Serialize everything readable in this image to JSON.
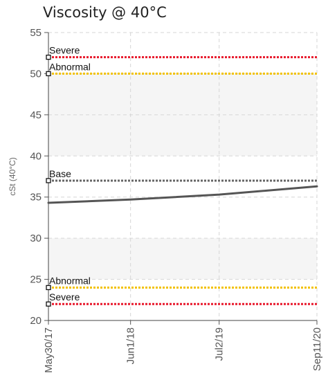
{
  "chart_data": {
    "type": "line",
    "title": "Viscosity @ 40°C",
    "ylabel": "cSt (40°C)",
    "ylim": [
      20,
      55
    ],
    "yticks": [
      20,
      25,
      30,
      35,
      40,
      45,
      50,
      55
    ],
    "xlim": [
      "2017-05-30",
      "2020-09-11"
    ],
    "xticks": [
      {
        "label": "May30/17",
        "date": "2017-05-30"
      },
      {
        "label": "Jun1/18",
        "date": "2018-06-01"
      },
      {
        "label": "Jul2/19",
        "date": "2019-07-02"
      },
      {
        "label": "Sep11/20",
        "date": "2020-09-11"
      }
    ],
    "grid": true,
    "bands": [
      {
        "from": 40,
        "to": 50,
        "color": "#f5f5f5"
      },
      {
        "from": 25,
        "to": 30,
        "color": "#f5f5f5"
      }
    ],
    "thresholds": [
      {
        "label": "Severe",
        "value": 52,
        "color": "#e8192c"
      },
      {
        "label": "Abnormal",
        "value": 50,
        "color": "#f2c200"
      },
      {
        "label": "Base",
        "value": 37,
        "color": "#666666"
      },
      {
        "label": "Abnormal",
        "value": 24,
        "color": "#f2c200"
      },
      {
        "label": "Severe",
        "value": 22,
        "color": "#e8192c"
      }
    ],
    "series": [
      {
        "color": "#555555",
        "points": [
          {
            "x": "2017-05-30",
            "y": 34.3
          },
          {
            "x": "2018-06-01",
            "y": 34.7
          },
          {
            "x": "2019-07-02",
            "y": 35.3
          },
          {
            "x": "2020-09-11",
            "y": 36.3
          }
        ]
      }
    ]
  }
}
